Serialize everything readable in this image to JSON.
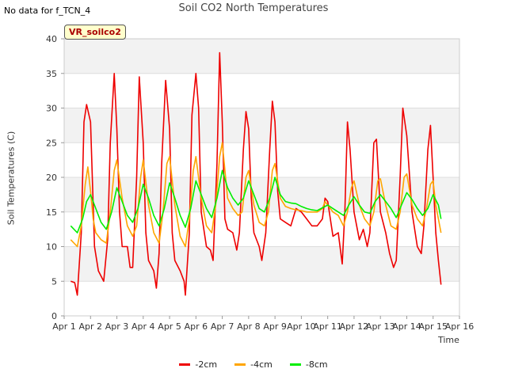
{
  "header": {
    "no_data_note": "No data for f_TCN_4",
    "site_label": "VR_soilco2"
  },
  "chart_data": {
    "type": "line",
    "title": "Soil CO2 North Temperatures",
    "xlabel": "Time",
    "ylabel": "Soil Temperatures (C)",
    "xlim": [
      1,
      16
    ],
    "ylim": [
      0,
      40
    ],
    "yticks": [
      0,
      5,
      10,
      15,
      20,
      25,
      30,
      35,
      40
    ],
    "xticks": [
      1,
      2,
      3,
      4,
      5,
      6,
      7,
      8,
      9,
      10,
      11,
      12,
      13,
      14,
      15,
      16
    ],
    "xtick_labels": [
      "Apr 1",
      "Apr 2",
      "Apr 3",
      "Apr 4",
      "Apr 5",
      "Apr 6",
      "Apr 7",
      "Apr 8",
      "Apr 9",
      "Apr 10",
      "Apr 11",
      "Apr 12",
      "Apr 13",
      "Apr 14",
      "Apr 15",
      "Apr 16"
    ],
    "grid": true,
    "legend_position": "bottom-center",
    "series": [
      {
        "name": "-2cm",
        "color": "#ee0000",
        "x": [
          1.25,
          1.4,
          1.5,
          1.65,
          1.75,
          1.85,
          2.0,
          2.15,
          2.3,
          2.5,
          2.65,
          2.75,
          2.9,
          3.0,
          3.1,
          3.2,
          3.4,
          3.5,
          3.6,
          3.75,
          3.85,
          4.0,
          4.1,
          4.2,
          4.4,
          4.5,
          4.6,
          4.7,
          4.85,
          5.0,
          5.1,
          5.2,
          5.4,
          5.55,
          5.6,
          5.75,
          5.85,
          6.0,
          6.1,
          6.2,
          6.4,
          6.55,
          6.65,
          6.8,
          6.9,
          7.0,
          7.1,
          7.2,
          7.4,
          7.55,
          7.65,
          7.8,
          7.9,
          8.0,
          8.1,
          8.2,
          8.4,
          8.5,
          8.65,
          8.8,
          8.9,
          9.0,
          9.1,
          9.2,
          9.4,
          9.6,
          9.8,
          10.0,
          10.2,
          10.4,
          10.6,
          10.8,
          10.9,
          11.0,
          11.2,
          11.4,
          11.55,
          11.65,
          11.75,
          11.85,
          12.0,
          12.2,
          12.35,
          12.5,
          12.6,
          12.75,
          12.85,
          13.0,
          13.2,
          13.35,
          13.5,
          13.6,
          13.75,
          13.85,
          14.0,
          14.2,
          14.4,
          14.55,
          14.65,
          14.8,
          14.9,
          15.0,
          15.1,
          15.2,
          15.3
        ],
        "y": [
          5.0,
          4.8,
          3.0,
          12.0,
          28.0,
          30.5,
          28.0,
          10.0,
          6.5,
          5.0,
          11.0,
          25.0,
          35.0,
          27.0,
          15.0,
          10.0,
          10.0,
          7.0,
          7.0,
          20.0,
          34.5,
          25.0,
          12.0,
          8.0,
          6.5,
          4.0,
          9.0,
          22.0,
          34.0,
          27.0,
          12.0,
          8.0,
          6.5,
          5.0,
          3.0,
          12.0,
          29.0,
          35.0,
          30.0,
          15.0,
          10.0,
          9.5,
          8.0,
          22.0,
          38.0,
          28.0,
          14.0,
          12.5,
          12.0,
          9.5,
          12.0,
          24.0,
          29.5,
          27.0,
          17.0,
          12.0,
          10.0,
          8.0,
          12.0,
          24.0,
          31.0,
          28.0,
          18.0,
          14.0,
          13.5,
          13.0,
          15.5,
          15.0,
          14.0,
          13.0,
          13.0,
          14.0,
          17.0,
          16.5,
          11.5,
          12.0,
          7.5,
          15.0,
          28.0,
          24.0,
          15.0,
          11.0,
          12.5,
          10.0,
          12.0,
          25.0,
          25.5,
          15.0,
          12.0,
          9.0,
          7.0,
          8.0,
          20.0,
          30.0,
          26.0,
          15.0,
          10.0,
          9.0,
          13.0,
          24.0,
          27.5,
          20.0,
          12.0,
          8.0,
          4.5
        ]
      },
      {
        "name": "-4cm",
        "color": "#ffa500",
        "x": [
          1.25,
          1.5,
          1.65,
          1.8,
          1.9,
          2.0,
          2.1,
          2.2,
          2.4,
          2.6,
          2.75,
          2.9,
          3.0,
          3.2,
          3.4,
          3.6,
          3.75,
          3.9,
          4.0,
          4.2,
          4.4,
          4.6,
          4.75,
          4.9,
          5.0,
          5.2,
          5.4,
          5.6,
          5.75,
          5.9,
          6.0,
          6.2,
          6.4,
          6.6,
          6.75,
          6.9,
          7.0,
          7.2,
          7.4,
          7.6,
          7.75,
          7.9,
          8.0,
          8.2,
          8.4,
          8.6,
          8.75,
          8.9,
          9.0,
          9.2,
          9.4,
          9.6,
          9.8,
          10.0,
          10.2,
          10.4,
          10.6,
          10.8,
          10.9,
          11.0,
          11.2,
          11.4,
          11.6,
          11.75,
          11.9,
          12.0,
          12.2,
          12.4,
          12.6,
          12.75,
          12.9,
          13.0,
          13.2,
          13.4,
          13.6,
          13.75,
          13.9,
          14.0,
          14.2,
          14.4,
          14.6,
          14.75,
          14.9,
          15.0,
          15.1,
          15.3
        ],
        "y": [
          11.0,
          10.0,
          13.0,
          19.0,
          21.5,
          18.0,
          14.0,
          12.0,
          11.0,
          10.5,
          15.0,
          21.0,
          22.5,
          17.0,
          13.0,
          11.5,
          13.0,
          20.0,
          22.5,
          16.0,
          12.0,
          10.5,
          15.0,
          22.0,
          23.0,
          16.0,
          11.5,
          10.0,
          14.0,
          21.0,
          23.0,
          17.0,
          13.0,
          12.0,
          16.0,
          23.0,
          25.0,
          17.0,
          15.5,
          14.5,
          15.0,
          20.0,
          21.0,
          16.0,
          13.5,
          13.0,
          15.0,
          21.0,
          22.0,
          17.0,
          15.8,
          15.5,
          15.3,
          15.2,
          15.0,
          15.0,
          15.0,
          15.5,
          16.5,
          16.0,
          15.0,
          14.5,
          13.0,
          15.0,
          18.5,
          19.5,
          16.0,
          14.0,
          13.0,
          15.0,
          19.5,
          19.8,
          16.0,
          13.0,
          12.5,
          15.0,
          20.0,
          20.5,
          16.0,
          14.0,
          13.0,
          15.5,
          19.0,
          19.5,
          16.0,
          12.0
        ]
      },
      {
        "name": "-8cm",
        "color": "#00ee00",
        "x": [
          1.25,
          1.5,
          1.7,
          1.85,
          2.0,
          2.2,
          2.4,
          2.6,
          2.8,
          3.0,
          3.2,
          3.4,
          3.6,
          3.8,
          4.0,
          4.2,
          4.4,
          4.6,
          4.8,
          5.0,
          5.2,
          5.4,
          5.6,
          5.8,
          6.0,
          6.2,
          6.4,
          6.6,
          6.8,
          7.0,
          7.2,
          7.4,
          7.6,
          7.8,
          8.0,
          8.2,
          8.4,
          8.6,
          8.8,
          9.0,
          9.2,
          9.4,
          9.6,
          9.8,
          10.0,
          10.2,
          10.4,
          10.6,
          10.8,
          11.0,
          11.2,
          11.4,
          11.6,
          11.8,
          12.0,
          12.2,
          12.4,
          12.6,
          12.8,
          13.0,
          13.2,
          13.4,
          13.6,
          13.8,
          14.0,
          14.2,
          14.4,
          14.6,
          14.8,
          15.0,
          15.2,
          15.3
        ],
        "y": [
          13.0,
          12.0,
          14.0,
          16.5,
          17.5,
          15.5,
          13.5,
          12.5,
          15.0,
          18.5,
          16.5,
          14.5,
          13.5,
          15.5,
          19.0,
          17.0,
          14.5,
          13.0,
          15.5,
          19.2,
          17.0,
          14.5,
          12.8,
          15.5,
          19.5,
          17.5,
          15.5,
          14.2,
          17.0,
          21.0,
          18.5,
          17.0,
          16.0,
          17.0,
          19.5,
          17.5,
          15.5,
          15.0,
          17.0,
          20.0,
          17.5,
          16.5,
          16.3,
          16.2,
          15.8,
          15.5,
          15.3,
          15.2,
          15.6,
          16.0,
          15.5,
          15.0,
          14.5,
          16.0,
          17.2,
          16.0,
          15.0,
          14.8,
          16.5,
          17.5,
          16.5,
          15.5,
          14.2,
          16.0,
          17.8,
          16.8,
          15.5,
          14.5,
          15.5,
          17.5,
          16.0,
          14.0
        ]
      }
    ]
  }
}
